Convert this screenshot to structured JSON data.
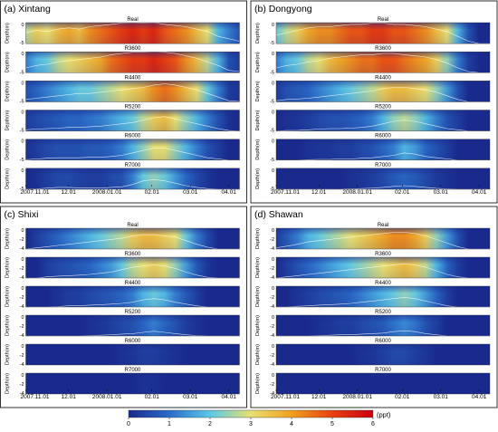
{
  "chart_data": {
    "type": "heatmap",
    "colorbar": {
      "min": 0,
      "max": 6,
      "ticks": [
        "0",
        "1",
        "2",
        "3",
        "4",
        "5",
        "6"
      ],
      "unit": "(ppt)",
      "colors": [
        "#1a2a8c",
        "#2a6cc8",
        "#5ac8e8",
        "#e8e070",
        "#f0a020",
        "#e84010",
        "#c80010"
      ]
    },
    "x_ticks": [
      "2007.11.01",
      "12.01",
      "2008.01.01",
      "02.01",
      "03.01",
      "04.01"
    ],
    "y_label": "Depth(m)",
    "panels": [
      {
        "id": "a",
        "label": "(a)",
        "station": "Xintang",
        "y_ticks": [
          "0",
          "-5"
        ],
        "rows": [
          {
            "name": "Real",
            "level": [
              0.45,
              0.55,
              0.5,
              0.6,
              0.65,
              0.6,
              0.7,
              0.75,
              0.8,
              0.85,
              0.9,
              0.85,
              0.9,
              0.8,
              0.75,
              0.7,
              0.6,
              0.5,
              0.3,
              0.2,
              0.1
            ]
          },
          {
            "name": "R3600",
            "level": [
              0.2,
              0.3,
              0.35,
              0.45,
              0.5,
              0.55,
              0.6,
              0.65,
              0.75,
              0.8,
              0.85,
              0.85,
              0.9,
              0.85,
              0.8,
              0.7,
              0.6,
              0.45,
              0.3,
              0.1,
              0.05
            ]
          },
          {
            "name": "R4400",
            "level": [
              0.1,
              0.15,
              0.2,
              0.25,
              0.3,
              0.35,
              0.35,
              0.4,
              0.45,
              0.5,
              0.55,
              0.6,
              0.7,
              0.75,
              0.7,
              0.6,
              0.5,
              0.35,
              0.2,
              0.05,
              0.02
            ]
          },
          {
            "name": "R5200",
            "level": [
              0.05,
              0.08,
              0.1,
              0.12,
              0.15,
              0.15,
              0.18,
              0.2,
              0.25,
              0.3,
              0.35,
              0.45,
              0.55,
              0.6,
              0.5,
              0.4,
              0.3,
              0.2,
              0.1,
              0.02,
              0.0
            ]
          },
          {
            "name": "R6000",
            "level": [
              0.02,
              0.05,
              0.08,
              0.1,
              0.1,
              0.1,
              0.12,
              0.12,
              0.15,
              0.2,
              0.3,
              0.4,
              0.5,
              0.5,
              0.4,
              0.3,
              0.2,
              0.1,
              0.05,
              0.0,
              0.0
            ]
          },
          {
            "name": "R7000",
            "level": [
              0.0,
              0.02,
              0.05,
              0.08,
              0.08,
              0.06,
              0.05,
              0.05,
              0.08,
              0.1,
              0.2,
              0.35,
              0.4,
              0.35,
              0.25,
              0.15,
              0.08,
              0.03,
              0.0,
              0.0,
              0.0
            ]
          }
        ]
      },
      {
        "id": "b",
        "label": "(b)",
        "station": "Dongyong",
        "y_ticks": [
          "0",
          "-5"
        ],
        "rows": [
          {
            "name": "Real",
            "level": [
              0.35,
              0.45,
              0.55,
              0.65,
              0.7,
              0.7,
              0.75,
              0.8,
              0.8,
              0.85,
              0.85,
              0.8,
              0.8,
              0.75,
              0.7,
              0.6,
              0.5,
              0.3,
              0.1,
              0.0,
              0.0
            ]
          },
          {
            "name": "R3600",
            "level": [
              0.2,
              0.3,
              0.35,
              0.45,
              0.5,
              0.6,
              0.65,
              0.7,
              0.75,
              0.75,
              0.8,
              0.8,
              0.75,
              0.7,
              0.65,
              0.55,
              0.4,
              0.2,
              0.05,
              0.0,
              0.0
            ]
          },
          {
            "name": "R4400",
            "level": [
              0.05,
              0.1,
              0.12,
              0.15,
              0.2,
              0.25,
              0.3,
              0.35,
              0.4,
              0.45,
              0.55,
              0.6,
              0.6,
              0.55,
              0.5,
              0.4,
              0.25,
              0.1,
              0.0,
              0.0,
              0.0
            ]
          },
          {
            "name": "R5200",
            "level": [
              0.0,
              0.02,
              0.03,
              0.05,
              0.08,
              0.1,
              0.1,
              0.12,
              0.15,
              0.2,
              0.3,
              0.4,
              0.45,
              0.4,
              0.3,
              0.2,
              0.1,
              0.05,
              0.0,
              0.0,
              0.0
            ]
          },
          {
            "name": "R6000",
            "level": [
              0.0,
              0.0,
              0.0,
              0.02,
              0.03,
              0.03,
              0.05,
              0.05,
              0.08,
              0.1,
              0.15,
              0.2,
              0.3,
              0.25,
              0.15,
              0.1,
              0.05,
              0.0,
              0.0,
              0.0,
              0.0
            ]
          },
          {
            "name": "R7000",
            "level": [
              0.0,
              0.0,
              0.0,
              0.0,
              0.0,
              0.0,
              0.0,
              0.02,
              0.03,
              0.05,
              0.08,
              0.12,
              0.15,
              0.12,
              0.08,
              0.04,
              0.02,
              0.0,
              0.0,
              0.0,
              0.0
            ]
          }
        ]
      },
      {
        "id": "c",
        "label": "(c)",
        "station": "Shixi",
        "y_ticks": [
          "0",
          "-2",
          "-4"
        ],
        "rows": [
          {
            "name": "Real",
            "level": [
              0.0,
              0.05,
              0.1,
              0.15,
              0.2,
              0.25,
              0.3,
              0.35,
              0.4,
              0.45,
              0.55,
              0.6,
              0.6,
              0.55,
              0.5,
              0.35,
              0.2,
              0.08,
              0.0,
              0.0,
              0.0
            ]
          },
          {
            "name": "R3600",
            "level": [
              0.0,
              0.0,
              0.05,
              0.08,
              0.1,
              0.12,
              0.15,
              0.2,
              0.25,
              0.35,
              0.45,
              0.5,
              0.55,
              0.5,
              0.4,
              0.25,
              0.12,
              0.03,
              0.0,
              0.0,
              0.0
            ]
          },
          {
            "name": "R4400",
            "level": [
              0.0,
              0.0,
              0.0,
              0.02,
              0.05,
              0.05,
              0.08,
              0.1,
              0.12,
              0.15,
              0.2,
              0.3,
              0.35,
              0.3,
              0.2,
              0.12,
              0.05,
              0.0,
              0.0,
              0.0,
              0.0
            ]
          },
          {
            "name": "R5200",
            "level": [
              0.0,
              0.0,
              0.0,
              0.0,
              0.0,
              0.0,
              0.02,
              0.03,
              0.05,
              0.08,
              0.1,
              0.15,
              0.2,
              0.15,
              0.1,
              0.05,
              0.02,
              0.0,
              0.0,
              0.0,
              0.0
            ]
          },
          {
            "name": "R6000",
            "level": [
              0.0,
              0.0,
              0.0,
              0.0,
              0.0,
              0.0,
              0.0,
              0.0,
              0.0,
              0.02,
              0.03,
              0.05,
              0.05,
              0.03,
              0.02,
              0.0,
              0.0,
              0.0,
              0.0,
              0.0,
              0.0
            ]
          },
          {
            "name": "R7000",
            "level": [
              0.0,
              0.0,
              0.0,
              0.0,
              0.0,
              0.0,
              0.0,
              0.0,
              0.0,
              0.0,
              0.0,
              0.02,
              0.02,
              0.0,
              0.0,
              0.0,
              0.0,
              0.0,
              0.0,
              0.0,
              0.0
            ]
          }
        ]
      },
      {
        "id": "d",
        "label": "(d)",
        "station": "Shawan",
        "y_ticks": [
          "0",
          "-2",
          "-4"
        ],
        "rows": [
          {
            "name": "Real",
            "level": [
              0.05,
              0.12,
              0.2,
              0.3,
              0.35,
              0.4,
              0.45,
              0.5,
              0.55,
              0.6,
              0.65,
              0.7,
              0.7,
              0.65,
              0.55,
              0.4,
              0.25,
              0.1,
              0.0,
              0.0,
              0.0
            ]
          },
          {
            "name": "R3600",
            "level": [
              0.0,
              0.05,
              0.1,
              0.15,
              0.2,
              0.25,
              0.3,
              0.35,
              0.4,
              0.45,
              0.5,
              0.55,
              0.6,
              0.55,
              0.45,
              0.3,
              0.15,
              0.05,
              0.0,
              0.0,
              0.0
            ]
          },
          {
            "name": "R4400",
            "level": [
              0.0,
              0.0,
              0.03,
              0.05,
              0.08,
              0.1,
              0.12,
              0.15,
              0.2,
              0.25,
              0.3,
              0.35,
              0.4,
              0.35,
              0.25,
              0.15,
              0.05,
              0.0,
              0.0,
              0.0,
              0.0
            ]
          },
          {
            "name": "R5200",
            "level": [
              0.0,
              0.0,
              0.0,
              0.0,
              0.02,
              0.03,
              0.05,
              0.05,
              0.08,
              0.1,
              0.12,
              0.18,
              0.22,
              0.18,
              0.1,
              0.05,
              0.0,
              0.0,
              0.0,
              0.0,
              0.0
            ]
          },
          {
            "name": "R6000",
            "level": [
              0.0,
              0.0,
              0.0,
              0.0,
              0.0,
              0.0,
              0.0,
              0.0,
              0.02,
              0.03,
              0.05,
              0.08,
              0.08,
              0.05,
              0.03,
              0.0,
              0.0,
              0.0,
              0.0,
              0.0,
              0.0
            ]
          },
          {
            "name": "R7000",
            "level": [
              0.0,
              0.0,
              0.0,
              0.0,
              0.0,
              0.0,
              0.0,
              0.0,
              0.0,
              0.0,
              0.0,
              0.0,
              0.0,
              0.0,
              0.0,
              0.0,
              0.0,
              0.0,
              0.0,
              0.0,
              0.0
            ]
          }
        ]
      }
    ]
  }
}
